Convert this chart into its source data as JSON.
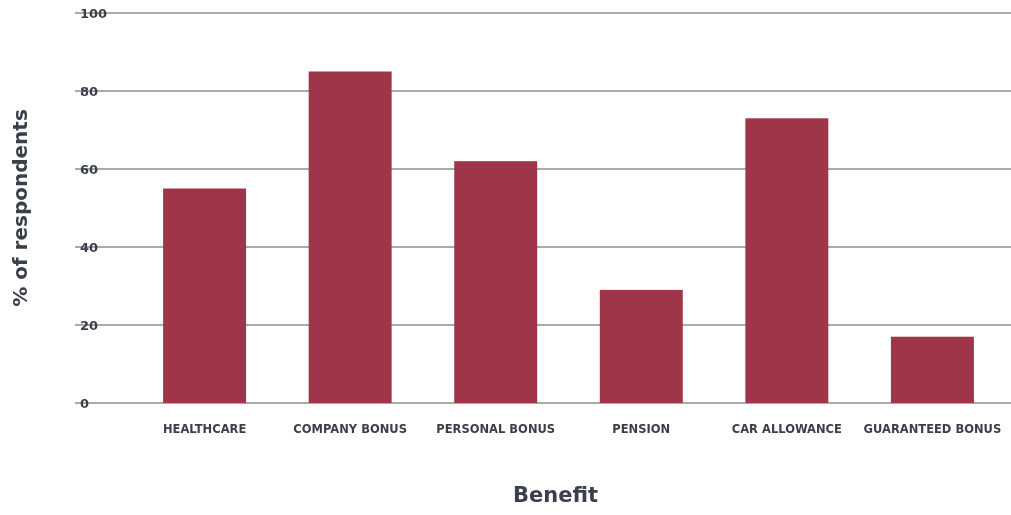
{
  "chart_data": {
    "type": "bar",
    "xlabel": "Benefit",
    "ylabel": "% of respondents",
    "categories": [
      "HEALTHCARE",
      "COMPANY BONUS",
      "PERSONAL BONUS",
      "PENSION",
      "CAR ALLOWANCE",
      "GUARANTEED BONUS"
    ],
    "values": [
      55,
      85,
      62,
      29,
      73,
      17
    ],
    "color": "#9e3549",
    "ylim": [
      0,
      100
    ],
    "yticks": [
      0,
      20,
      40,
      60,
      80,
      100
    ],
    "grid": "y"
  }
}
